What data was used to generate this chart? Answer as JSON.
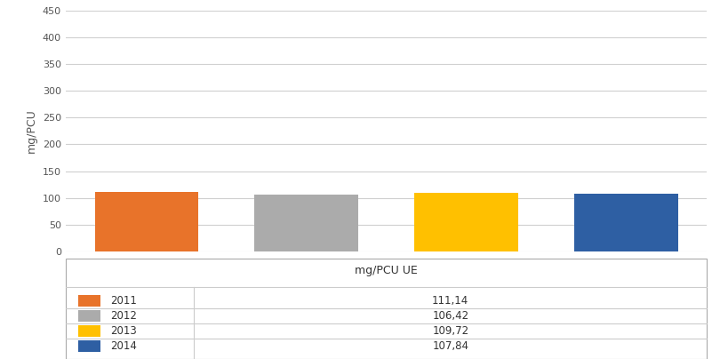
{
  "categories": [
    "2011",
    "2012",
    "2013",
    "2014"
  ],
  "values": [
    111.14,
    106.42,
    109.72,
    107.84
  ],
  "bar_colors": [
    "#E8732A",
    "#ABABAB",
    "#FFC000",
    "#2E5FA3"
  ],
  "ylabel": "mg/PCU",
  "ylim": [
    0,
    450
  ],
  "yticks": [
    0,
    50,
    100,
    150,
    200,
    250,
    300,
    350,
    400,
    450
  ],
  "legend_header": "mg/PCU UE",
  "legend_labels": [
    "2011",
    "2012",
    "2013",
    "2014"
  ],
  "legend_values": [
    "111,14",
    "106,42",
    "109,72",
    "107,84"
  ],
  "background_color": "#FFFFFF",
  "grid_color": "#D0D0D0",
  "bar_width": 0.65
}
